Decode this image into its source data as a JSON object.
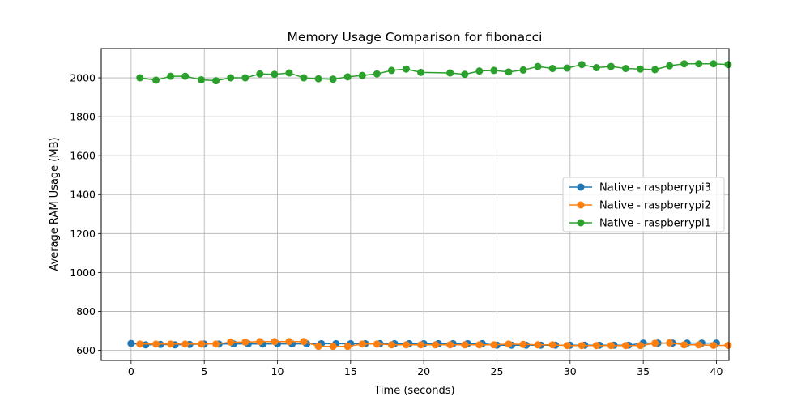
{
  "chart_data": {
    "type": "line",
    "title": "Memory Usage Comparison for fibonacci",
    "xlabel": "Time (seconds)",
    "ylabel": "Average RAM Usage (MB)",
    "xlim": [
      -2.04,
      40.86
    ],
    "ylim": [
      548,
      2150
    ],
    "xticks": [
      0,
      5,
      10,
      15,
      20,
      25,
      30,
      35,
      40
    ],
    "yticks": [
      600,
      800,
      1000,
      1200,
      1400,
      1600,
      1800,
      2000
    ],
    "grid": true,
    "legend_position": "center-right",
    "series": [
      {
        "name": "Native - raspberrypi3",
        "color": "#1f77b4",
        "x": [
          0,
          1,
          2,
          3,
          4,
          5,
          6,
          7,
          8,
          9,
          10,
          11,
          12,
          13,
          14,
          15,
          16,
          17,
          18,
          19,
          20,
          21,
          22,
          23,
          24,
          25,
          26,
          27,
          28,
          29,
          30,
          31,
          32,
          33,
          34,
          35,
          36,
          37,
          38,
          39,
          40
        ],
        "y": [
          635,
          628,
          630,
          628,
          630,
          632,
          632,
          633,
          633,
          632,
          633,
          633,
          633,
          634,
          634,
          634,
          634,
          634,
          634,
          634,
          634,
          634,
          634,
          634,
          634,
          626,
          626,
          626,
          626,
          626,
          626,
          626,
          626,
          626,
          626,
          637,
          637,
          637,
          637,
          637,
          637
        ]
      },
      {
        "name": "Native - raspberrypi2",
        "color": "#ff7f0e",
        "x": [
          0.6,
          1.7,
          2.7,
          3.7,
          4.8,
          5.8,
          6.8,
          7.8,
          8.8,
          9.8,
          10.8,
          11.8,
          12.8,
          13.8,
          14.8,
          15.8,
          16.8,
          17.8,
          18.8,
          19.8,
          20.8,
          21.8,
          22.8,
          23.8,
          24.8,
          25.8,
          26.8,
          27.8,
          28.8,
          29.8,
          30.8,
          31.8,
          32.8,
          33.8,
          34.8,
          35.8,
          36.8,
          37.8,
          38.8,
          39.8,
          40.8
        ],
        "y": [
          632,
          632,
          632,
          632,
          632,
          632,
          642,
          642,
          645,
          645,
          645,
          645,
          620,
          620,
          620,
          632,
          632,
          628,
          628,
          628,
          628,
          628,
          628,
          628,
          628,
          632,
          630,
          628,
          628,
          624,
          624,
          624,
          624,
          624,
          624,
          636,
          638,
          628,
          628,
          625,
          625
        ]
      },
      {
        "name": "Native - raspberrypi1",
        "color": "#2ca02c",
        "x": [
          0.6,
          1.7,
          2.7,
          3.7,
          4.8,
          5.8,
          6.8,
          7.8,
          8.8,
          9.8,
          10.8,
          11.8,
          12.8,
          13.8,
          14.8,
          15.8,
          16.8,
          17.8,
          18.8,
          19.8,
          21.8,
          22.8,
          23.8,
          24.8,
          25.8,
          26.8,
          27.8,
          28.8,
          29.8,
          30.8,
          31.8,
          32.8,
          33.8,
          34.8,
          35.8,
          36.8,
          37.8,
          38.8,
          39.8,
          40.8
        ],
        "y": [
          2000,
          1988,
          2008,
          2008,
          1990,
          1985,
          2000,
          2000,
          2020,
          2018,
          2025,
          2000,
          1995,
          1993,
          2005,
          2012,
          2020,
          2038,
          2045,
          2028,
          2025,
          2018,
          2035,
          2038,
          2030,
          2040,
          2058,
          2048,
          2050,
          2068,
          2052,
          2058,
          2048,
          2045,
          2042,
          2062,
          2072,
          2072,
          2072,
          2068
        ]
      }
    ]
  }
}
